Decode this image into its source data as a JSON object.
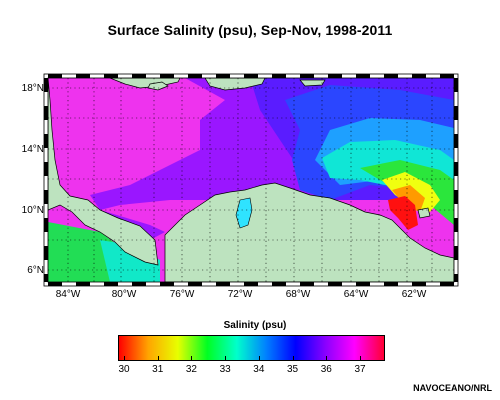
{
  "title": "Surface Salinity (psu), Sep-Nov, 1998-2011",
  "map": {
    "lat_labels": [
      "18°N",
      "14°N",
      "10°N",
      "6°N"
    ],
    "lon_labels": [
      "84°W",
      "80°W",
      "76°W",
      "72°W",
      "68°W",
      "64°W",
      "62°W"
    ],
    "land_color": "#bde3bf"
  },
  "colorbar": {
    "title": "Salinity (psu)",
    "ticks": [
      "30",
      "31",
      "32",
      "33",
      "34",
      "35",
      "36",
      "37"
    ],
    "colors": [
      "#ff0000",
      "#ffa500",
      "#e7ff00",
      "#00ff22",
      "#00ffcc",
      "#0080ff",
      "#0000ff",
      "#8800ff",
      "#ff00ff",
      "#ff0033"
    ]
  },
  "credit": "NAVOCEANO/NRL"
}
